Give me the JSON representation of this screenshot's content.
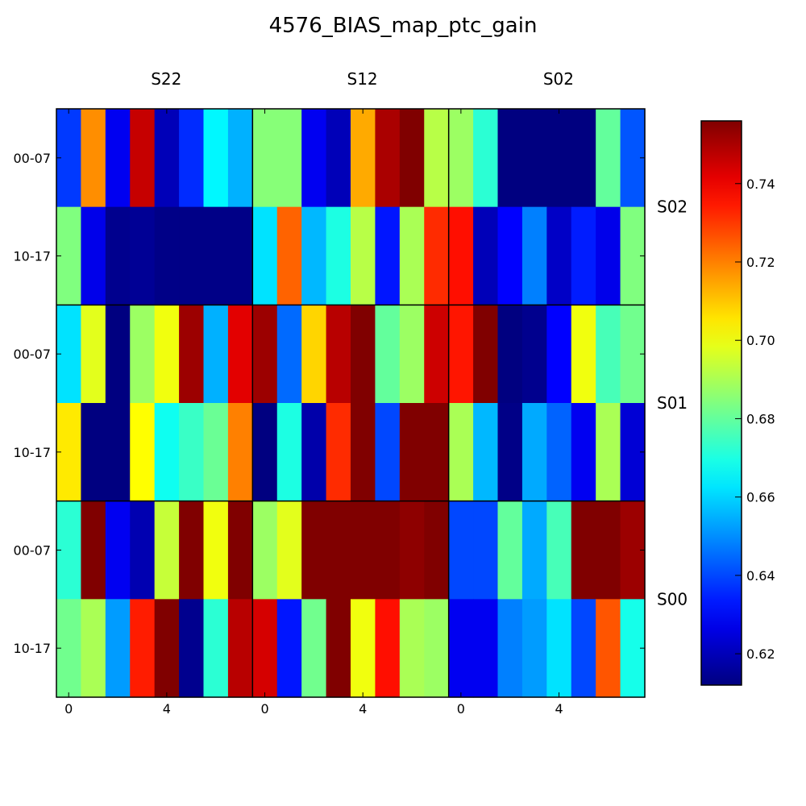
{
  "chart_data": {
    "type": "heatmap",
    "title": "4576_BIAS_map_ptc_gain",
    "column_groups": [
      "S22",
      "S12",
      "S02"
    ],
    "row_groups": [
      "S02",
      "S01",
      "S00"
    ],
    "row_tick_labels": [
      "00-07",
      "10-17",
      "00-07",
      "10-17",
      "00-07",
      "10-17"
    ],
    "x_tick_labels": [
      "0",
      "4",
      "0",
      "4",
      "0",
      "4"
    ],
    "colorbar": {
      "colormap": "jet",
      "vmin": 0.612,
      "vmax": 0.756,
      "ticks": [
        "0.62",
        "0.64",
        "0.66",
        "0.68",
        "0.70",
        "0.72",
        "0.74"
      ]
    },
    "grid": false,
    "values": [
      [
        0.638,
        0.718,
        0.628,
        0.746,
        0.62,
        0.636,
        0.665,
        0.655,
        0.685,
        0.685,
        0.628,
        0.62,
        0.714,
        0.75,
        0.756,
        0.692,
        0.688,
        0.672,
        0.612,
        0.612,
        0.612,
        0.612,
        0.68,
        0.642
      ],
      [
        0.684,
        0.627,
        0.614,
        0.615,
        0.613,
        0.613,
        0.613,
        0.613,
        0.662,
        0.724,
        0.656,
        0.67,
        0.692,
        0.633,
        0.69,
        0.732,
        0.736,
        0.62,
        0.63,
        0.648,
        0.622,
        0.634,
        0.627,
        0.684
      ],
      [
        0.662,
        0.698,
        0.612,
        0.688,
        0.7,
        0.752,
        0.655,
        0.742,
        0.752,
        0.645,
        0.708,
        0.748,
        0.756,
        0.68,
        0.688,
        0.745,
        0.735,
        0.756,
        0.612,
        0.614,
        0.63,
        0.7,
        0.676,
        0.682
      ],
      [
        0.705,
        0.612,
        0.612,
        0.702,
        0.668,
        0.674,
        0.681,
        0.72,
        0.612,
        0.67,
        0.618,
        0.732,
        0.756,
        0.64,
        0.756,
        0.756,
        0.69,
        0.656,
        0.613,
        0.654,
        0.644,
        0.628,
        0.69,
        0.624
      ],
      [
        0.672,
        0.756,
        0.628,
        0.619,
        0.694,
        0.756,
        0.7,
        0.756,
        0.688,
        0.698,
        0.756,
        0.756,
        0.756,
        0.756,
        0.754,
        0.756,
        0.64,
        0.64,
        0.68,
        0.654,
        0.676,
        0.756,
        0.756,
        0.752
      ],
      [
        0.682,
        0.69,
        0.652,
        0.734,
        0.756,
        0.614,
        0.672,
        0.748,
        0.744,
        0.633,
        0.682,
        0.756,
        0.7,
        0.736,
        0.69,
        0.688,
        0.628,
        0.628,
        0.648,
        0.652,
        0.662,
        0.64,
        0.726,
        0.669
      ]
    ]
  }
}
